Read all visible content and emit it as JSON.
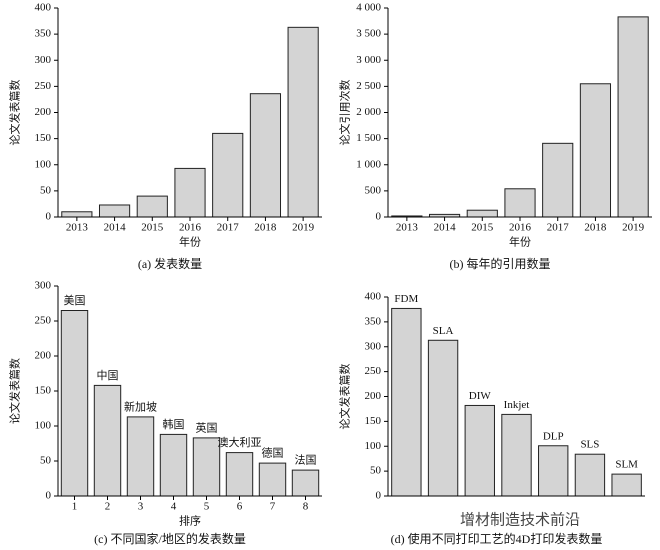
{
  "chart_data": [
    {
      "type": "bar",
      "categories": [
        "2013",
        "2014",
        "2015",
        "2016",
        "2017",
        "2018",
        "2019"
      ],
      "values": [
        10,
        23,
        40,
        93,
        160,
        236,
        363
      ],
      "color": "#d4d4d4",
      "ylim": [
        0,
        400
      ],
      "yticks": [
        0,
        50,
        100,
        150,
        200,
        250,
        300,
        350,
        400
      ],
      "y_label": "论文发表篇数",
      "x_label": "年份",
      "caption": "(a) 发表数量"
    },
    {
      "type": "bar",
      "categories": [
        "2013",
        "2014",
        "2015",
        "2016",
        "2017",
        "2018",
        "2019"
      ],
      "values": [
        20,
        50,
        130,
        540,
        1410,
        2550,
        3830
      ],
      "color": "#d4d4d4",
      "ylim": [
        0,
        4000
      ],
      "yticks": [
        0,
        500,
        {
          "value": 1000,
          "label": "1 000"
        },
        {
          "value": 1500,
          "label": "1 500"
        },
        {
          "value": 2000,
          "label": "2 000"
        },
        {
          "value": 2500,
          "label": "2 500"
        },
        {
          "value": 3000,
          "label": "3 000"
        },
        {
          "value": 3500,
          "label": "3 500"
        },
        {
          "value": 4000,
          "label": "4 000"
        }
      ],
      "y_label": "论文引用次数",
      "x_label": "年份",
      "caption": "(b) 每年的引用数量"
    },
    {
      "type": "bar",
      "categories": [
        "1",
        "2",
        "3",
        "4",
        "5",
        "6",
        "7",
        "8"
      ],
      "values": [
        265,
        158,
        113,
        88,
        83,
        62,
        47,
        37
      ],
      "color": "#d4d4d4",
      "bar_labels": [
        "美国",
        "中国",
        "新加坡",
        "韩国",
        "英国",
        "澳大利亚",
        "德国",
        "法国"
      ],
      "ylim": [
        0,
        300
      ],
      "yticks": [
        0,
        50,
        100,
        150,
        200,
        250,
        300
      ],
      "y_label": "论文发表篇数",
      "x_label": "排序",
      "caption": "(c) 不同国家/地区的发表数量"
    },
    {
      "type": "bar",
      "categories": [
        "FDM",
        "SLA",
        "DIW",
        "Inkjet",
        "DLP",
        "SLS",
        "SLM"
      ],
      "category_labels": "above",
      "values": [
        377,
        313,
        182,
        164,
        101,
        84,
        44
      ],
      "color": "#d4d4d4",
      "ylim": [
        0,
        400
      ],
      "yticks": [
        0,
        50,
        100,
        150,
        200,
        250,
        300,
        350,
        400
      ],
      "y_label": "论文发表篇数",
      "caption": "(d) 使用不同打印工艺的4D打印发表数量"
    }
  ],
  "watermark": "增材制造技术前沿"
}
